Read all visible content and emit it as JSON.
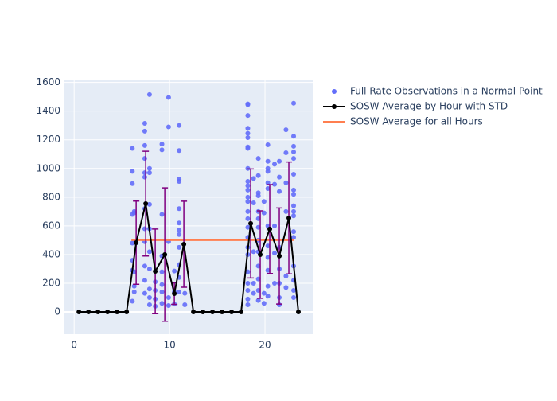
{
  "chart_data": {
    "type": "scatter",
    "xlim": [
      -1.1,
      25
    ],
    "ylim": [
      -155,
      1620
    ],
    "xticks": [
      0,
      10,
      20
    ],
    "yticks": [
      0,
      200,
      400,
      600,
      800,
      1000,
      1200,
      1400,
      1600
    ],
    "grid": true,
    "legend": "right",
    "series": [
      {
        "name": "Full Rate Observations in a Normal Point",
        "type": "scatter",
        "color": "#636efa",
        "x": [
          6.1,
          6.1,
          6.1,
          6.1,
          6.1,
          6.1,
          6.1,
          6.1,
          6.3,
          6.3,
          6.3,
          6.3,
          6.3,
          7.4,
          7.4,
          7.4,
          7.4,
          7.4,
          7.4,
          7.4,
          7.4,
          7.4,
          7.4,
          7.4,
          7.4,
          7.9,
          7.9,
          7.9,
          7.9,
          7.9,
          7.9,
          7.9,
          7.9,
          7.9,
          7.9,
          8.5,
          8.5,
          8.5,
          8.5,
          9.2,
          9.2,
          9.2,
          9.2,
          9.2,
          9.2,
          9.2,
          9.2,
          9.9,
          9.9,
          9.9,
          9.9,
          9.9,
          10.5,
          10.5,
          10.5,
          11,
          11,
          11,
          11,
          11,
          11,
          11,
          11,
          11,
          11,
          11,
          11,
          11.6,
          11.6,
          18.2,
          18.2,
          18.2,
          18.2,
          18.2,
          18.2,
          18.2,
          18.2,
          18.2,
          18.2,
          18.2,
          18.2,
          18.2,
          18.2,
          18.2,
          18.2,
          18.2,
          18.2,
          18.2,
          18.2,
          18.2,
          18.2,
          18.2,
          18.2,
          18.2,
          18.8,
          18.8,
          18.8,
          18.8,
          18.8,
          19.3,
          19.3,
          19.3,
          19.3,
          19.3,
          19.3,
          19.3,
          19.3,
          19.3,
          19.3,
          19.3,
          19.3,
          19.3,
          19.9,
          19.9,
          19.9,
          19.9,
          20.3,
          20.3,
          20.3,
          20.3,
          20.3,
          20.3,
          20.3,
          20.3,
          20.3,
          20.3,
          20.3,
          20.3,
          21,
          21,
          21,
          21,
          21,
          21.5,
          21.5,
          21.5,
          21.5,
          21.5,
          21.5,
          21.5,
          21.5,
          22.2,
          22.2,
          22.2,
          22.2,
          22.2,
          22.2,
          23,
          23,
          23,
          23,
          23,
          23,
          23,
          23,
          23,
          23,
          23,
          23,
          23,
          23,
          23,
          23,
          23
        ],
        "values": [
          1140,
          980,
          895,
          680,
          480,
          360,
          290,
          75,
          700,
          690,
          280,
          180,
          140,
          1315,
          1260,
          1160,
          1070,
          970,
          940,
          720,
          580,
          490,
          320,
          220,
          130,
          1515,
          1000,
          970,
          750,
          580,
          420,
          300,
          160,
          100,
          50,
          210,
          150,
          90,
          40,
          1170,
          1130,
          680,
          390,
          280,
          190,
          140,
          60,
          1495,
          1290,
          490,
          100,
          45,
          285,
          140,
          55,
          1300,
          1125,
          925,
          910,
          720,
          620,
          570,
          540,
          450,
          330,
          240,
          140,
          130,
          50,
          1450,
          1445,
          1370,
          1280,
          1245,
          1215,
          1150,
          1140,
          1000,
          910,
          880,
          850,
          800,
          770,
          700,
          650,
          590,
          520,
          450,
          400,
          280,
          200,
          150,
          90,
          50,
          930,
          760,
          420,
          200,
          130,
          1070,
          950,
          830,
          810,
          700,
          650,
          590,
          500,
          420,
          320,
          230,
          150,
          80,
          770,
          690,
          130,
          60,
          1165,
          1050,
          1000,
          980,
          900,
          860,
          600,
          460,
          380,
          290,
          180,
          110,
          1030,
          890,
          600,
          410,
          200,
          1050,
          940,
          840,
          450,
          300,
          200,
          100,
          50,
          1270,
          1110,
          900,
          700,
          250,
          170,
          1455,
          1225,
          1155,
          1115,
          1070,
          960,
          850,
          820,
          740,
          700,
          670,
          560,
          520,
          320,
          220,
          150,
          100
        ]
      },
      {
        "name": "SOSW Average by Hour with STD",
        "type": "line",
        "color": "#000000",
        "error_color": "#800080",
        "x": [
          0.5,
          1.5,
          2.5,
          3.5,
          4.5,
          5.5,
          6.5,
          7.5,
          8.5,
          9.5,
          10.5,
          11.5,
          12.5,
          13.5,
          14.5,
          15.5,
          16.5,
          17.5,
          18.5,
          19.5,
          20.5,
          21.5,
          22.5,
          23.5
        ],
        "values": [
          0,
          0,
          0,
          0,
          0,
          0,
          483,
          755,
          283,
          400,
          128,
          472,
          0,
          0,
          0,
          0,
          0,
          0,
          617,
          400,
          578,
          390,
          655,
          0
        ],
        "error": [
          0,
          0,
          0,
          0,
          0,
          0,
          290,
          365,
          295,
          465,
          75,
          300,
          0,
          0,
          0,
          0,
          0,
          0,
          380,
          305,
          310,
          335,
          390,
          0
        ]
      },
      {
        "name": "SOSW Average for all Hours",
        "type": "flat",
        "color": "#ff7f50",
        "x": [
          6,
          23
        ],
        "values": [
          500,
          500
        ]
      }
    ]
  }
}
